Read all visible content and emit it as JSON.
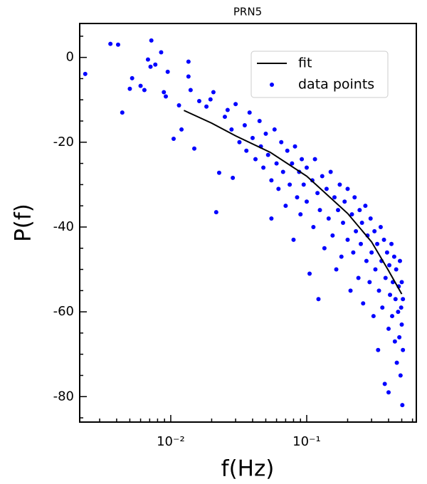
{
  "chart_data": {
    "type": "scatter",
    "title": "PRN5",
    "x_label": "f(Hz)",
    "y_label": "P(f)",
    "x_scale": "log",
    "xlim": [
      0.00214,
      0.64
    ],
    "ylim": [
      -86,
      8
    ],
    "xticks": [
      {
        "value": 0.01,
        "label": "10⁻²"
      },
      {
        "value": 0.1,
        "label": "10⁻¹"
      }
    ],
    "x_minor_ticks": [
      0.003,
      0.004,
      0.005,
      0.006,
      0.007,
      0.008,
      0.009,
      0.02,
      0.03,
      0.04,
      0.05,
      0.06,
      0.07,
      0.08,
      0.09,
      0.2,
      0.3,
      0.4,
      0.5,
      0.6
    ],
    "yticks": [
      -80,
      -60,
      -40,
      -20,
      0
    ],
    "y_minor_ticks": [
      -85,
      -75,
      -70,
      -65,
      -55,
      -50,
      -45,
      -35,
      -30,
      -25,
      -15,
      -10,
      -5,
      5
    ],
    "legend_position": "upper right",
    "series": [
      {
        "name": "fit",
        "color": "#000000",
        "mark": "line",
        "x": [
          0.0125,
          0.02,
          0.03,
          0.054,
          0.1,
          0.2,
          0.3,
          0.4,
          0.5
        ],
        "values": [
          -12.5,
          -15.5,
          -18.5,
          -22.4,
          -28,
          -36.8,
          -43.5,
          -50.3,
          -55.8
        ]
      },
      {
        "name": "data points",
        "color": "#0000ff",
        "mark": "dot",
        "x": [
          0.00235,
          0.0036,
          0.0041,
          0.0072,
          0.0044,
          0.0052,
          0.005,
          0.006,
          0.0064,
          0.0068,
          0.0071,
          0.0077,
          0.0085,
          0.0089,
          0.0092,
          0.0095,
          0.0105,
          0.0115,
          0.012,
          0.0135,
          0.0135,
          0.014,
          0.0149,
          0.0162,
          0.0183,
          0.0196,
          0.0206,
          0.0216,
          0.0227,
          0.0286,
          0.0262,
          0.025,
          0.028,
          0.03,
          0.032,
          0.035,
          0.036,
          0.038,
          0.04,
          0.042,
          0.045,
          0.046,
          0.048,
          0.05,
          0.052,
          0.055,
          0.055,
          0.058,
          0.06,
          0.062,
          0.065,
          0.067,
          0.07,
          0.072,
          0.075,
          0.078,
          0.08,
          0.082,
          0.085,
          0.088,
          0.09,
          0.092,
          0.095,
          0.1,
          0.1,
          0.105,
          0.11,
          0.112,
          0.115,
          0.12,
          0.122,
          0.125,
          0.13,
          0.135,
          0.14,
          0.145,
          0.15,
          0.155,
          0.16,
          0.165,
          0.17,
          0.175,
          0.18,
          0.185,
          0.19,
          0.2,
          0.2,
          0.21,
          0.215,
          0.22,
          0.225,
          0.23,
          0.24,
          0.245,
          0.25,
          0.255,
          0.26,
          0.27,
          0.275,
          0.28,
          0.29,
          0.295,
          0.3,
          0.31,
          0.315,
          0.32,
          0.33,
          0.335,
          0.34,
          0.35,
          0.355,
          0.36,
          0.37,
          0.375,
          0.38,
          0.39,
          0.4,
          0.4,
          0.405,
          0.41,
          0.42,
          0.425,
          0.43,
          0.44,
          0.445,
          0.45,
          0.455,
          0.46,
          0.47,
          0.475,
          0.48,
          0.485,
          0.49,
          0.495,
          0.5,
          0.5,
          0.505,
          0.51,
          0.51
        ],
        "values": [
          -3.9,
          3.2,
          3.0,
          4.0,
          -13,
          -4.9,
          -7.4,
          -6.7,
          -7.7,
          -0.5,
          -2.2,
          -1.7,
          1.2,
          -8.2,
          -9.2,
          -3.4,
          -19.2,
          -11.3,
          -17,
          -1.0,
          -4.5,
          -7.7,
          -21.5,
          -10.3,
          -11.6,
          -9.9,
          -8.2,
          -36.5,
          -27.2,
          -28.4,
          -12.4,
          -14,
          -17,
          -11,
          -20,
          -16,
          -22,
          -13,
          -19,
          -24,
          -15,
          -21,
          -26,
          -18,
          -23,
          -29,
          -38,
          -17,
          -25,
          -31,
          -20,
          -27,
          -35,
          -22,
          -30,
          -25,
          -43,
          -21,
          -33,
          -27,
          -37,
          -24,
          -30,
          -26,
          -34,
          -51,
          -29,
          -40,
          -24,
          -32,
          -57,
          -36,
          -28,
          -45,
          -31,
          -38,
          -27,
          -42,
          -33,
          -50,
          -36,
          -30,
          -47,
          -39,
          -34,
          -43,
          -31,
          -55,
          -37,
          -46,
          -33,
          -41,
          -52,
          -36,
          -44,
          -39,
          -58,
          -35,
          -48,
          -42,
          -53,
          -38,
          -46,
          -61,
          -41,
          -50,
          -44,
          -69,
          -55,
          -40,
          -48,
          -59,
          -43,
          -77,
          -52,
          -46,
          -64,
          -79,
          -49,
          -56,
          -44,
          -61,
          -53,
          -47,
          -67,
          -57,
          -50,
          -72,
          -60,
          -54,
          -66,
          -48,
          -75,
          -59,
          -63,
          -53,
          -82,
          -57,
          -69
        ]
      }
    ]
  }
}
